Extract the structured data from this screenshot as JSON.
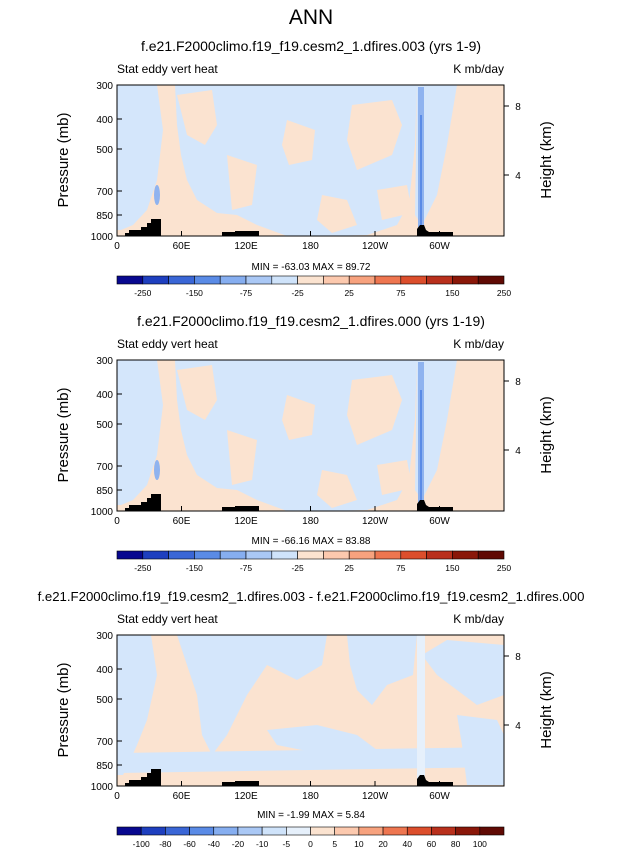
{
  "figure": {
    "title": "ANN"
  },
  "chart_data": [
    {
      "type": "heatmap",
      "title": "f.e21.F2000climo.f19_f19.cesm2_1.dfires.003 (yrs 1-9)",
      "left_label": "Stat eddy vert heat",
      "right_label": "K mb/day",
      "ylabel": "Pressure (mb)",
      "ylabel_right": "Height (km)",
      "x_ticks": [
        "0",
        "60E",
        "120E",
        "180",
        "120W",
        "60W"
      ],
      "y_ticks": [
        "300",
        "400",
        "500",
        "700",
        "850",
        "1000"
      ],
      "y_right_ticks": [
        "8",
        "4"
      ],
      "stats": "MIN = -63.03   MAX = 89.72",
      "colorbar": {
        "labels": [
          "-250",
          "-150",
          "-75",
          "-25",
          "25",
          "75",
          "150",
          "250"
        ],
        "colors": [
          "#08088f",
          "#1e3fbf",
          "#3a66d6",
          "#5a8be6",
          "#86aef0",
          "#aac8f5",
          "#cfe3fa",
          "#fbe3d0",
          "#fcc9ae",
          "#f7a27e",
          "#ee7650",
          "#dc4e2c",
          "#b9301c",
          "#8a1709",
          "#600a04"
        ]
      },
      "field": {
        "background": "#fbe3d0",
        "negative": "#d4e6fb",
        "strong_negative": "#8fb3ef"
      }
    },
    {
      "type": "heatmap",
      "title": "f.e21.F2000climo.f19_f19.cesm2_1.dfires.000 (yrs 1-19)",
      "left_label": "Stat eddy vert heat",
      "right_label": "K mb/day",
      "ylabel": "Pressure (mb)",
      "ylabel_right": "Height (km)",
      "x_ticks": [
        "0",
        "60E",
        "120E",
        "180",
        "120W",
        "60W"
      ],
      "y_ticks": [
        "300",
        "400",
        "500",
        "700",
        "850",
        "1000"
      ],
      "y_right_ticks": [
        "8",
        "4"
      ],
      "stats": "MIN = -66.16   MAX = 83.88",
      "colorbar": {
        "labels": [
          "-250",
          "-150",
          "-75",
          "-25",
          "25",
          "75",
          "150",
          "250"
        ],
        "colors": [
          "#08088f",
          "#1e3fbf",
          "#3a66d6",
          "#5a8be6",
          "#86aef0",
          "#aac8f5",
          "#cfe3fa",
          "#fbe3d0",
          "#fcc9ae",
          "#f7a27e",
          "#ee7650",
          "#dc4e2c",
          "#b9301c",
          "#8a1709",
          "#600a04"
        ]
      },
      "field": {
        "background": "#fbe3d0",
        "negative": "#d4e6fb",
        "strong_negative": "#8fb3ef"
      }
    },
    {
      "type": "heatmap",
      "title": "f.e21.F2000climo.f19_f19.cesm2_1.dfires.003 - f.e21.F2000climo.f19_f19.cesm2_1.dfires.000",
      "left_label": "Stat eddy vert heat",
      "right_label": "K mb/day",
      "ylabel": "Pressure (mb)",
      "ylabel_right": "Height (km)",
      "x_ticks": [
        "0",
        "60E",
        "120E",
        "180",
        "120W",
        "60W"
      ],
      "y_ticks": [
        "300",
        "400",
        "500",
        "700",
        "850",
        "1000"
      ],
      "y_right_ticks": [
        "8",
        "4"
      ],
      "stats": "MIN = -1.99   MAX =  5.84",
      "colorbar": {
        "labels": [
          "-100",
          "-80",
          "-60",
          "-40",
          "-20",
          "-10",
          "-5",
          "0",
          "5",
          "10",
          "20",
          "40",
          "60",
          "80",
          "100"
        ],
        "colors": [
          "#08088f",
          "#1e3fbf",
          "#3a66d6",
          "#5a8be6",
          "#86aef0",
          "#aac8f5",
          "#cfe3fa",
          "#e6f0fb",
          "#fbe3d0",
          "#fcc9ae",
          "#f7a27e",
          "#ee7650",
          "#dc4e2c",
          "#b9301c",
          "#8a1709",
          "#600a04"
        ]
      },
      "field": {
        "background": "#fbe3d0",
        "negative": "#d4e6fb",
        "strong_negative": "#8fb3ef"
      }
    }
  ]
}
